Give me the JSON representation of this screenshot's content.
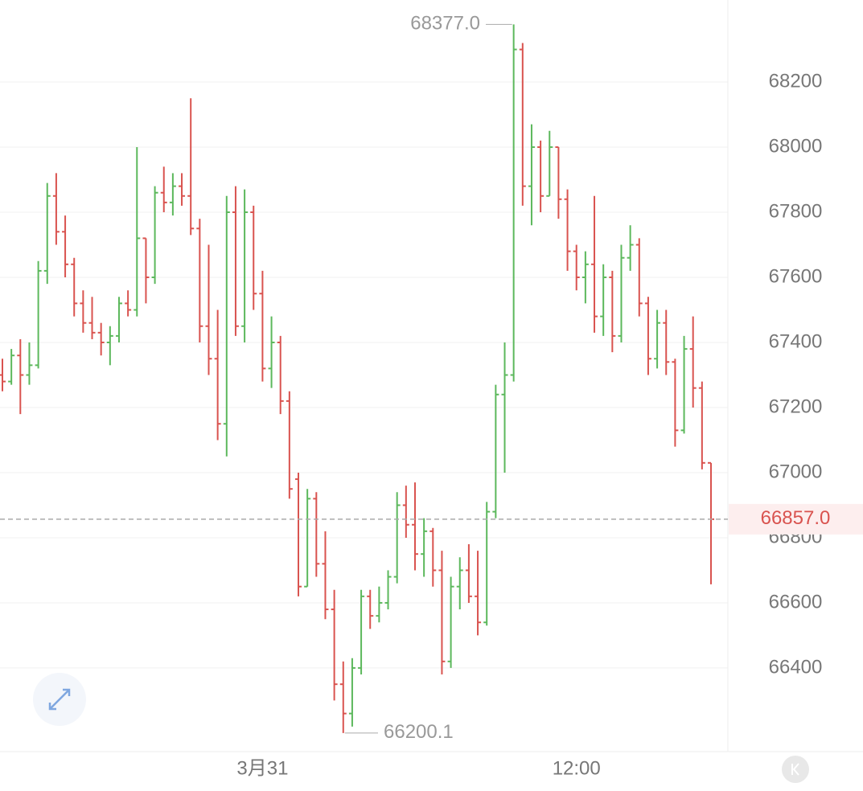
{
  "chart_data": {
    "type": "ohlc",
    "categories": [
      null,
      null,
      null,
      null,
      null,
      null,
      null,
      null,
      null,
      null,
      null,
      null,
      null,
      null,
      null,
      null,
      null,
      null,
      null,
      null,
      null,
      null,
      null,
      null,
      null,
      null,
      null,
      null,
      null,
      "3月31",
      null,
      null,
      null,
      null,
      null,
      null,
      null,
      null,
      null,
      null,
      null,
      null,
      null,
      null,
      null,
      null,
      null,
      null,
      null,
      null,
      null,
      null,
      null,
      null,
      null,
      null,
      null,
      null,
      null,
      null,
      null,
      null,
      null,
      null,
      "12:00",
      null,
      null,
      null,
      null,
      null,
      null,
      null,
      null,
      null,
      null,
      null,
      null,
      null,
      null,
      null
    ],
    "open": [
      67300,
      67280,
      67360,
      67300,
      67330,
      67620,
      67850,
      67740,
      67640,
      67520,
      67460,
      67430,
      67400,
      67420,
      67520,
      67500,
      67720,
      67600,
      67860,
      67830,
      67880,
      67850,
      67750,
      67450,
      67350,
      67150,
      67800,
      67450,
      67800,
      67550,
      67320,
      67400,
      67220,
      66980,
      66650,
      66920,
      66720,
      66580,
      66350,
      66260,
      66400,
      66620,
      66560,
      66600,
      66680,
      66900,
      66840,
      66750,
      66820,
      66700,
      66420,
      66650,
      66700,
      66620,
      66540,
      66880,
      67240,
      67300,
      68300,
      67880,
      68000,
      67850,
      68000,
      67840,
      67680,
      67600,
      67640,
      67480,
      67600,
      67420,
      67660,
      67700,
      67520,
      67350,
      67460,
      67340,
      67130,
      67380,
      67260,
      67030
    ],
    "high": [
      67350,
      67380,
      67410,
      67400,
      67650,
      67890,
      67920,
      67790,
      67660,
      67560,
      67540,
      67460,
      67450,
      67540,
      67560,
      68000,
      67720,
      67880,
      67940,
      67920,
      67920,
      68150,
      67780,
      67700,
      67500,
      67850,
      67880,
      67870,
      67820,
      67620,
      67480,
      67420,
      67250,
      67000,
      66950,
      66940,
      66820,
      66640,
      66420,
      66430,
      66640,
      66640,
      66650,
      66700,
      66940,
      66960,
      66970,
      66860,
      66830,
      66760,
      66680,
      66740,
      66780,
      66760,
      66910,
      67270,
      67400,
      68377,
      68320,
      68070,
      68020,
      68050,
      68000,
      67870,
      67700,
      67680,
      67850,
      67640,
      67620,
      67700,
      67760,
      67720,
      67540,
      67500,
      67500,
      67350,
      67420,
      67480,
      67280,
      67030
    ],
    "low": [
      67250,
      67270,
      67180,
      67270,
      67320,
      67580,
      67700,
      67600,
      67480,
      67430,
      67410,
      67360,
      67330,
      67400,
      67480,
      67480,
      67520,
      67580,
      67800,
      67790,
      67820,
      67730,
      67400,
      67300,
      67100,
      67050,
      67420,
      67400,
      67500,
      67280,
      67260,
      67180,
      66920,
      66620,
      66650,
      66680,
      66550,
      66300,
      66200.1,
      66220,
      66380,
      66520,
      66540,
      66580,
      66660,
      66800,
      66700,
      66680,
      66650,
      66380,
      66400,
      66580,
      66600,
      66500,
      66530,
      66860,
      67000,
      67280,
      67820,
      67760,
      67800,
      67850,
      67780,
      67620,
      67560,
      67520,
      67430,
      67420,
      67370,
      67400,
      67620,
      67480,
      67300,
      67320,
      67300,
      67080,
      67120,
      67200,
      67010,
      66657
    ],
    "close": [
      67280,
      67360,
      67300,
      67330,
      67620,
      67850,
      67740,
      67640,
      67520,
      67460,
      67430,
      67400,
      67420,
      67520,
      67500,
      67720,
      67600,
      67860,
      67830,
      67880,
      67850,
      67750,
      67450,
      67350,
      67150,
      67800,
      67450,
      67800,
      67550,
      67320,
      67400,
      67220,
      66950,
      66650,
      66920,
      66720,
      66580,
      66350,
      66260,
      66400,
      66620,
      66560,
      66600,
      66680,
      66900,
      66840,
      66750,
      66820,
      66700,
      66420,
      66650,
      66700,
      66620,
      66540,
      66880,
      67240,
      67300,
      68300,
      67880,
      68000,
      67850,
      68000,
      67840,
      67680,
      67600,
      67640,
      67480,
      67600,
      67420,
      67660,
      67700,
      67520,
      67350,
      67460,
      67340,
      67130,
      67380,
      67260,
      67030,
      66857
    ],
    "up_color": "#5cb85c",
    "down_color": "#d9534f",
    "ylim": [
      66143,
      68452
    ],
    "yticks": [
      66400,
      66600,
      66800,
      67000,
      67200,
      67400,
      67600,
      67800,
      68000,
      68200
    ],
    "grid": true,
    "max_label": {
      "value": 68377,
      "label": "68377.0"
    },
    "min_label": {
      "value": 66200.1,
      "label": "66200.1"
    },
    "last_price": {
      "value": 66857,
      "label": "66857.0"
    }
  }
}
